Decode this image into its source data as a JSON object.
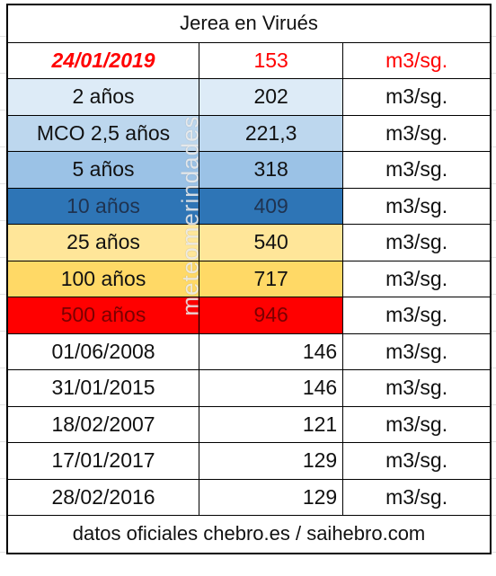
{
  "title": "Jerea en Virués",
  "rows": [
    [
      "24/01/2019",
      "153",
      "m3/sg."
    ],
    [
      "2 años",
      "202",
      "m3/sg."
    ],
    [
      "MCO 2,5 años",
      "221,3",
      "m3/sg."
    ],
    [
      "5 años",
      "318",
      "m3/sg."
    ],
    [
      "10 años",
      "409",
      "m3/sg."
    ],
    [
      "25 años",
      "540",
      "m3/sg."
    ],
    [
      "100 años",
      "717",
      "m3/sg."
    ],
    [
      "500 años",
      "946",
      "m3/sg."
    ],
    [
      "01/06/2008",
      "146",
      "m3/sg."
    ],
    [
      "31/01/2015",
      "146",
      "m3/sg."
    ],
    [
      "18/02/2007",
      "121",
      "m3/sg."
    ],
    [
      "17/01/2017",
      "129",
      "m3/sg."
    ],
    [
      "28/02/2016",
      "129",
      "m3/sg."
    ]
  ],
  "footer": "datos oficiales chebro.es / saihebro.com",
  "watermark": "meteomerindades"
}
